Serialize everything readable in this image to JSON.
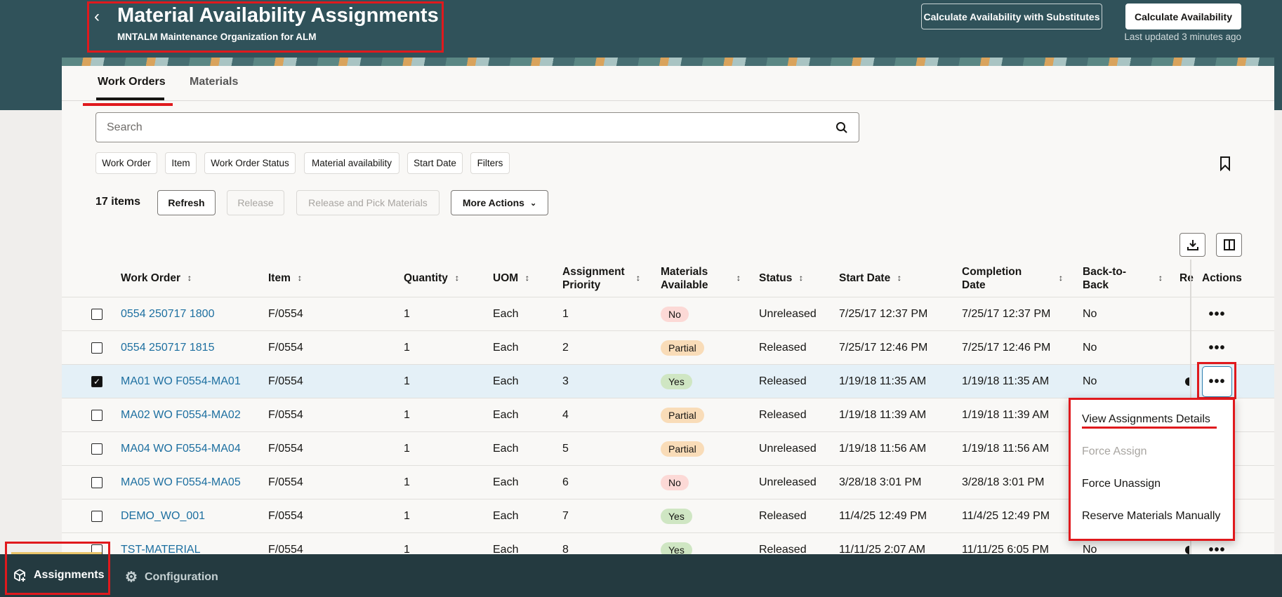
{
  "header": {
    "title": "Material Availability Assignments",
    "subtitle": "MNTALM Maintenance Organization for ALM",
    "calc_subs_label": "Calculate Availability with Substitutes",
    "calc_label": "Calculate Availability",
    "last_updated": "Last updated 3 minutes ago"
  },
  "tabs": [
    {
      "label": "Work Orders",
      "active": true
    },
    {
      "label": "Materials",
      "active": false
    }
  ],
  "search": {
    "placeholder": "Search",
    "icon": "search-icon"
  },
  "filter_chips": [
    "Work Order",
    "Item",
    "Work Order Status",
    "Material availability",
    "Start Date",
    "Filters"
  ],
  "toolbar": {
    "count": "17 items",
    "refresh": "Refresh",
    "release": "Release",
    "release_pick": "Release and Pick Materials",
    "more_actions": "More Actions"
  },
  "columns": [
    "Work Order",
    "Item",
    "Quantity",
    "UOM",
    "Assignment Priority",
    "Materials Available",
    "Status",
    "Start Date",
    "Completion Date",
    "Back-to-Back",
    "Re",
    "Actions"
  ],
  "badge_colors": {
    "No": "#fcd9d6",
    "Partial": "#f9dcb8",
    "Yes": "#cfe6c3"
  },
  "rows": [
    {
      "checked": false,
      "work_order": "0554 250717 1800",
      "item": "F/0554",
      "quantity": "1",
      "uom": "Each",
      "priority": "1",
      "materials": "No",
      "status": "Unreleased",
      "start": "7/25/17 12:37 PM",
      "completion": "7/25/17 12:37 PM",
      "b2b": "No"
    },
    {
      "checked": false,
      "work_order": "0554 250717 1815",
      "item": "F/0554",
      "quantity": "1",
      "uom": "Each",
      "priority": "2",
      "materials": "Partial",
      "status": "Released",
      "start": "7/25/17 12:46 PM",
      "completion": "7/25/17 12:46 PM",
      "b2b": "No"
    },
    {
      "checked": true,
      "work_order": "MA01 WO F0554-MA01",
      "item": "F/0554",
      "quantity": "1",
      "uom": "Each",
      "priority": "3",
      "materials": "Yes",
      "status": "Released",
      "start": "1/19/18 11:35 AM",
      "completion": "1/19/18 11:35 AM",
      "b2b": "No"
    },
    {
      "checked": false,
      "work_order": "MA02 WO F0554-MA02",
      "item": "F/0554",
      "quantity": "1",
      "uom": "Each",
      "priority": "4",
      "materials": "Partial",
      "status": "Released",
      "start": "1/19/18 11:39 AM",
      "completion": "1/19/18 11:39 AM",
      "b2b": ""
    },
    {
      "checked": false,
      "work_order": "MA04 WO F0554-MA04",
      "item": "F/0554",
      "quantity": "1",
      "uom": "Each",
      "priority": "5",
      "materials": "Partial",
      "status": "Unreleased",
      "start": "1/19/18 11:56 AM",
      "completion": "1/19/18 11:56 AM",
      "b2b": ""
    },
    {
      "checked": false,
      "work_order": "MA05 WO F0554-MA05",
      "item": "F/0554",
      "quantity": "1",
      "uom": "Each",
      "priority": "6",
      "materials": "No",
      "status": "Unreleased",
      "start": "3/28/18 3:01 PM",
      "completion": "3/28/18 3:01 PM",
      "b2b": ""
    },
    {
      "checked": false,
      "work_order": "DEMO_WO_001",
      "item": "F/0554",
      "quantity": "1",
      "uom": "Each",
      "priority": "7",
      "materials": "Yes",
      "status": "Released",
      "start": "11/4/25 12:49 PM",
      "completion": "11/4/25 12:49 PM",
      "b2b": ""
    },
    {
      "checked": false,
      "work_order": "TST-MATERIAL",
      "item": "F/0554",
      "quantity": "1",
      "uom": "Each",
      "priority": "8",
      "materials": "Yes",
      "status": "Released",
      "start": "11/11/25 2:07 AM",
      "completion": "11/11/25 6:05 PM",
      "b2b": "No"
    }
  ],
  "action_menu": [
    {
      "label": "View Assignments Details",
      "disabled": false
    },
    {
      "label": "Force Assign",
      "disabled": true
    },
    {
      "label": "Force Unassign",
      "disabled": false
    },
    {
      "label": "Reserve Materials Manually",
      "disabled": false
    }
  ],
  "nav": {
    "assignments": "Assignments",
    "configuration": "Configuration"
  }
}
